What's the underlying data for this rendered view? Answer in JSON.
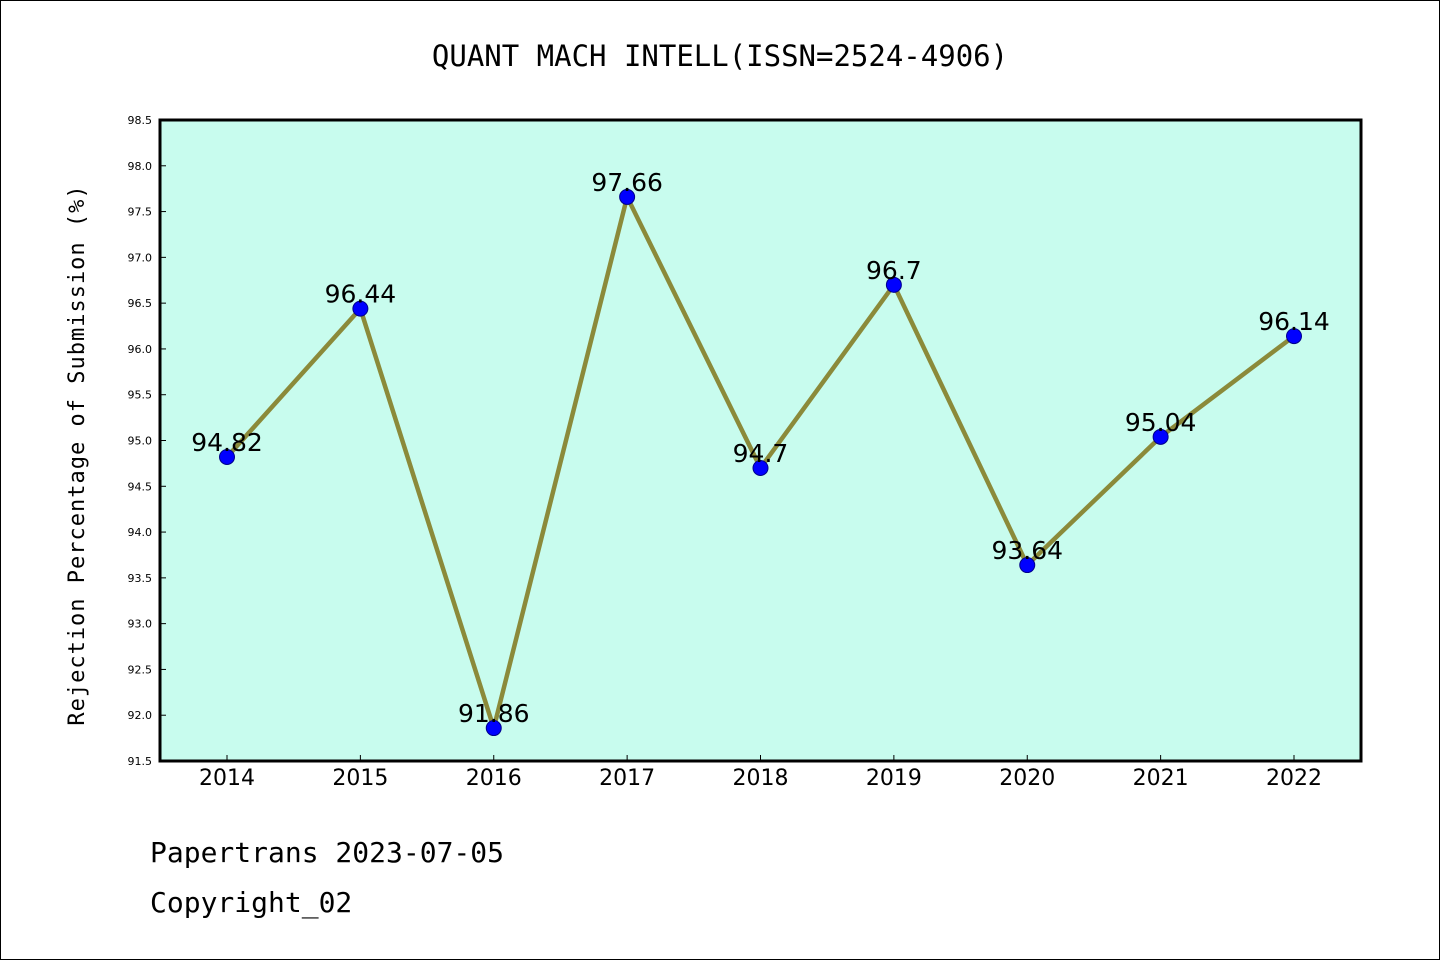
{
  "chart_data": {
    "type": "line",
    "title": "QUANT MACH INTELL(ISSN=2524-4906)",
    "xlabel": "",
    "ylabel": "Rejection Percentage of Submission (%)",
    "categories": [
      "2014",
      "2015",
      "2016",
      "2017",
      "2018",
      "2019",
      "2020",
      "2021",
      "2022"
    ],
    "values": [
      94.82,
      96.44,
      91.86,
      97.66,
      94.7,
      96.7,
      93.64,
      95.04,
      96.14
    ],
    "data_labels": [
      "94.82",
      "96.44",
      "91.86",
      "97.66",
      "94.7",
      "96.7",
      "93.64",
      "95.04",
      "96.14"
    ],
    "ylim": [
      91.5,
      98.5
    ],
    "yticks": [
      "91.5",
      "92.0",
      "92.5",
      "93.0",
      "93.5",
      "94.0",
      "94.5",
      "95.0",
      "95.5",
      "96.0",
      "96.5",
      "97.0",
      "97.5",
      "98.0",
      "98.5"
    ],
    "grid": false,
    "legend": "none",
    "colors": {
      "plot_background": "#c8fcee",
      "line": "#8b8a3a",
      "marker": "#0000ff",
      "marker_edge": "#00008b"
    }
  },
  "footer": {
    "source": "Papertrans 2023-07-05",
    "copyright": "Copyright_02"
  }
}
